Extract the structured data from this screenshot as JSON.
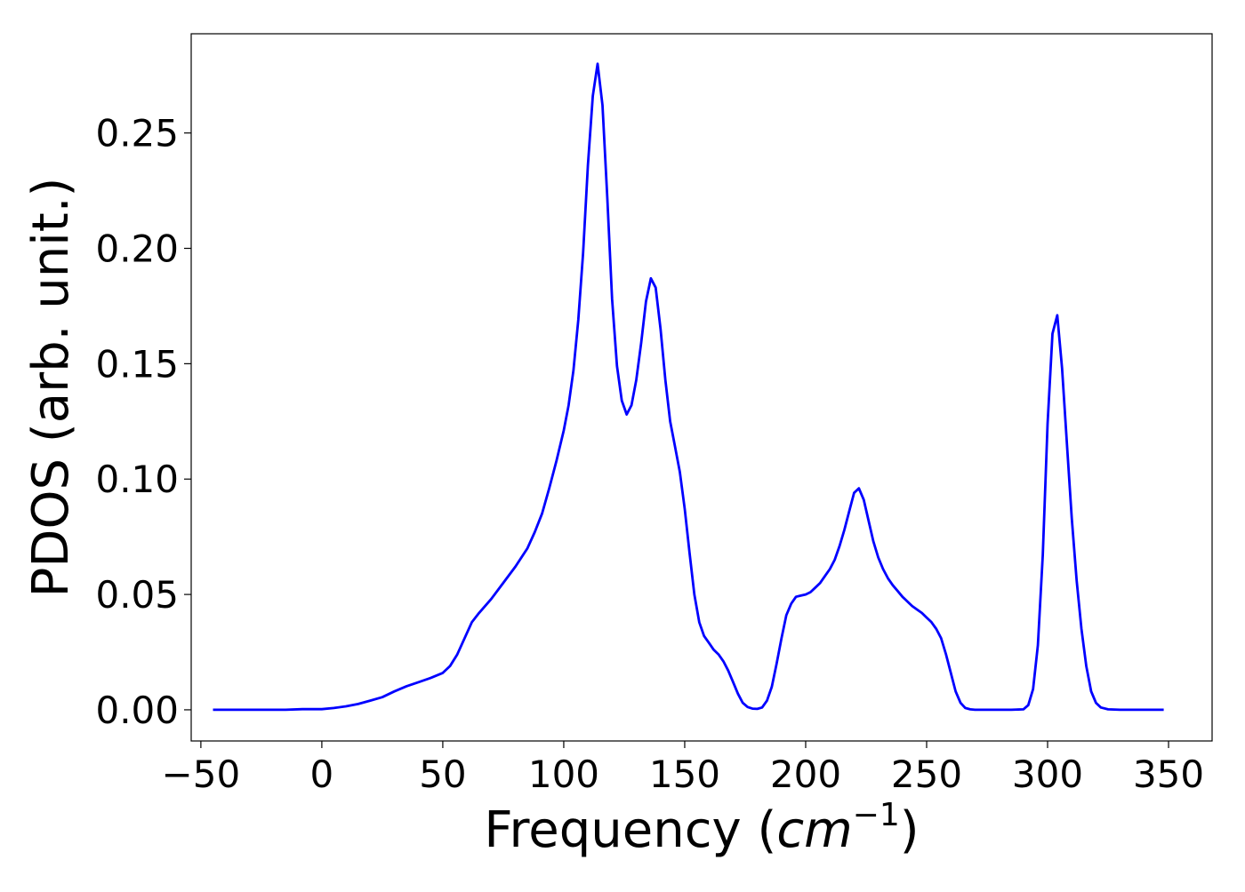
{
  "chart_data": {
    "type": "line",
    "title": "",
    "xlabel": "Frequency (cm⁻¹)",
    "xlabel_parts": {
      "prefix": "Frequency (",
      "unit": "cm",
      "exponent": "−1",
      "suffix": ")"
    },
    "ylabel": "PDOS (arb. unit.)",
    "xlim": [
      -54,
      368
    ],
    "ylim": [
      -0.0135,
      0.293
    ],
    "xticks": [
      -50,
      0,
      50,
      100,
      150,
      200,
      250,
      300,
      350
    ],
    "xtick_labels": [
      "−50",
      "0",
      "50",
      "100",
      "150",
      "200",
      "250",
      "300",
      "350"
    ],
    "yticks": [
      0.0,
      0.05,
      0.1,
      0.15,
      0.2,
      0.25
    ],
    "ytick_labels": [
      "0.00",
      "0.05",
      "0.10",
      "0.15",
      "0.20",
      "0.25"
    ],
    "grid": false,
    "legend": "none",
    "colors": {
      "series": "#0000ff",
      "axes": "#000000",
      "background": "#ffffff"
    },
    "series": [
      {
        "x": [
          -45,
          -30,
          -15,
          -8,
          0,
          5,
          10,
          15,
          20,
          25,
          30,
          35,
          40,
          45,
          50,
          53,
          56,
          59,
          62,
          65,
          70,
          75,
          80,
          85,
          88,
          91,
          94,
          97,
          100,
          102,
          104,
          106,
          108,
          110,
          112,
          114,
          116,
          118,
          120,
          122,
          124,
          126,
          128,
          130,
          132,
          134,
          136,
          138,
          140,
          142,
          144,
          146,
          148,
          150,
          152,
          154,
          156,
          158,
          160,
          162,
          164,
          166,
          168,
          170,
          172,
          174,
          176,
          178,
          180,
          182,
          184,
          186,
          188,
          190,
          192,
          194,
          196,
          198,
          200,
          202,
          204,
          206,
          208,
          210,
          212,
          214,
          216,
          218,
          220,
          222,
          224,
          226,
          228,
          230,
          232,
          234,
          236,
          238,
          240,
          242,
          244,
          246,
          248,
          250,
          252,
          254,
          256,
          258,
          260,
          262,
          264,
          266,
          268,
          270,
          275,
          280,
          285,
          290,
          292,
          294,
          296,
          298,
          300,
          302,
          304,
          306,
          308,
          310,
          312,
          314,
          316,
          318,
          320,
          322,
          325,
          330,
          340,
          348
        ],
        "y": [
          0.0,
          0.0,
          0.0,
          0.0003,
          0.0003,
          0.0008,
          0.0015,
          0.0025,
          0.004,
          0.0055,
          0.008,
          0.0102,
          0.012,
          0.0138,
          0.016,
          0.019,
          0.024,
          0.031,
          0.038,
          0.042,
          0.048,
          0.055,
          0.062,
          0.07,
          0.077,
          0.085,
          0.096,
          0.108,
          0.121,
          0.132,
          0.147,
          0.169,
          0.198,
          0.236,
          0.266,
          0.28,
          0.262,
          0.222,
          0.178,
          0.149,
          0.134,
          0.128,
          0.132,
          0.143,
          0.159,
          0.177,
          0.187,
          0.183,
          0.165,
          0.143,
          0.125,
          0.114,
          0.103,
          0.087,
          0.068,
          0.05,
          0.038,
          0.032,
          0.029,
          0.026,
          0.024,
          0.021,
          0.017,
          0.012,
          0.007,
          0.003,
          0.0012,
          0.0005,
          0.0004,
          0.001,
          0.004,
          0.01,
          0.02,
          0.031,
          0.041,
          0.046,
          0.049,
          0.0495,
          0.05,
          0.051,
          0.053,
          0.055,
          0.058,
          0.061,
          0.065,
          0.071,
          0.078,
          0.086,
          0.094,
          0.096,
          0.091,
          0.082,
          0.073,
          0.066,
          0.061,
          0.057,
          0.054,
          0.0515,
          0.049,
          0.047,
          0.045,
          0.0435,
          0.042,
          0.04,
          0.038,
          0.035,
          0.031,
          0.024,
          0.016,
          0.008,
          0.003,
          0.0008,
          0.0002,
          0.0,
          0.0,
          0.0,
          0.0,
          0.0002,
          0.002,
          0.009,
          0.028,
          0.067,
          0.124,
          0.163,
          0.171,
          0.148,
          0.115,
          0.083,
          0.056,
          0.035,
          0.019,
          0.008,
          0.003,
          0.001,
          0.0002,
          0.0,
          0.0,
          0.0
        ]
      }
    ]
  }
}
